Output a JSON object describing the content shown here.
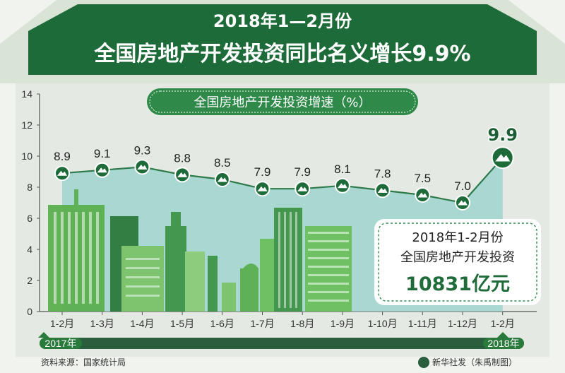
{
  "header": {
    "title_line1": "2018年1—2月份",
    "title_line2": "全国房地产开发投资同比名义增长9.9%"
  },
  "chart_pill": "全国房地产开发投资增速（%）",
  "info_box": {
    "line1": "2018年1-2月份",
    "line2": "全国房地产开发投资",
    "value": "10831亿元"
  },
  "timeline": {
    "start_year": "2017年",
    "end_year": "2018年"
  },
  "footer": {
    "source": "资料来源：国家统计局",
    "credit": "新华社发（朱禹制图）"
  },
  "colors": {
    "dark_green": "#1e6b3a",
    "title_green": "#2f8a4a",
    "area_fill": "#9fd3cf",
    "line": "#2f7a4a",
    "bg": "#f1f3ef"
  },
  "chart_data": {
    "type": "area",
    "title": "全国房地产开发投资增速（%）",
    "categories": [
      "1-2月",
      "1-3月",
      "1-4月",
      "1-5月",
      "1-6月",
      "1-7月",
      "1-8月",
      "1-9月",
      "1-10月",
      "1-11月",
      "1-12月",
      "1-2月"
    ],
    "values": [
      8.9,
      9.1,
      9.3,
      8.8,
      8.5,
      7.9,
      7.9,
      8.1,
      7.8,
      7.5,
      7.0,
      9.9
    ],
    "value_labels": [
      "8.9",
      "9.1",
      "9.3",
      "8.8",
      "8.5",
      "7.9",
      "7.9",
      "8.1",
      "7.8",
      "7.5",
      "7.0",
      "9.9"
    ],
    "y_ticks": [
      "0",
      "2",
      "4",
      "6",
      "8",
      "10",
      "12",
      "14"
    ],
    "ylim": [
      0,
      14
    ],
    "grid": false,
    "legend": "none"
  }
}
